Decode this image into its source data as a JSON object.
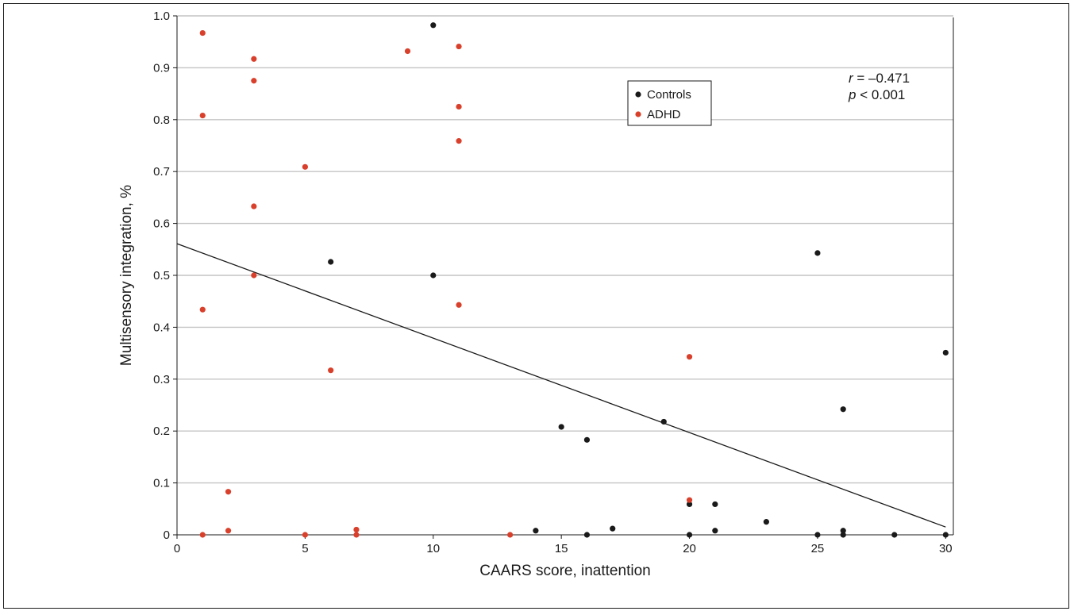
{
  "chart_data": {
    "type": "scatter",
    "xlabel": "CAARS score, inattention",
    "ylabel": "Multisensory integration, %",
    "xlim": [
      0,
      30.3
    ],
    "ylim": [
      0,
      1.0
    ],
    "xticks": [
      0,
      5,
      10,
      15,
      20,
      25,
      30
    ],
    "yticks": [
      0,
      0.1,
      0.2,
      0.3,
      0.4,
      0.5,
      0.6,
      0.7,
      0.8,
      0.9,
      1.0
    ],
    "ytick_labels": [
      "0",
      "0.1",
      "0.2",
      "0.3",
      "0.4",
      "0.5",
      "0.6",
      "0.7",
      "0.8",
      "0.9",
      "1.0"
    ],
    "grid": "horizontal",
    "legend_position": "top-right",
    "series": [
      {
        "name": "Controls",
        "color": "#1a1a1a",
        "points": [
          [
            10,
            0.982
          ],
          [
            6,
            0.526
          ],
          [
            10,
            0.5
          ],
          [
            25,
            0.543
          ],
          [
            30,
            0.351
          ],
          [
            26,
            0.242
          ],
          [
            19,
            0.218
          ],
          [
            15,
            0.208
          ],
          [
            16,
            0.183
          ],
          [
            20,
            0.059
          ],
          [
            21,
            0.059
          ],
          [
            23,
            0.025
          ],
          [
            17,
            0.012
          ],
          [
            14,
            0.008
          ],
          [
            21,
            0.008
          ],
          [
            26,
            0.008
          ],
          [
            16,
            0.0
          ],
          [
            20,
            0.0
          ],
          [
            25,
            0.0
          ],
          [
            26,
            0.0
          ],
          [
            28,
            0.0
          ],
          [
            30,
            0.0
          ]
        ]
      },
      {
        "name": "ADHD",
        "color": "#d9402c",
        "points": [
          [
            1,
            0.967
          ],
          [
            1,
            0.808
          ],
          [
            1,
            0.434
          ],
          [
            1,
            0.0
          ],
          [
            2,
            0.083
          ],
          [
            2,
            0.008
          ],
          [
            3,
            0.917
          ],
          [
            3,
            0.875
          ],
          [
            3,
            0.633
          ],
          [
            3,
            0.5
          ],
          [
            5,
            0.709
          ],
          [
            5,
            0.0
          ],
          [
            6,
            0.317
          ],
          [
            7,
            0.01
          ],
          [
            7,
            0.0
          ],
          [
            9,
            0.932
          ],
          [
            11,
            0.941
          ],
          [
            11,
            0.825
          ],
          [
            11,
            0.759
          ],
          [
            11,
            0.443
          ],
          [
            13,
            0.0
          ],
          [
            20,
            0.343
          ],
          [
            20,
            0.067
          ]
        ]
      }
    ],
    "trendline": {
      "x": [
        0,
        30
      ],
      "y": [
        0.561,
        0.015
      ]
    },
    "annotation": {
      "r_label": "r",
      "r_value": " = –0.471",
      "p_label": "p",
      "p_value": " < 0.001"
    }
  }
}
